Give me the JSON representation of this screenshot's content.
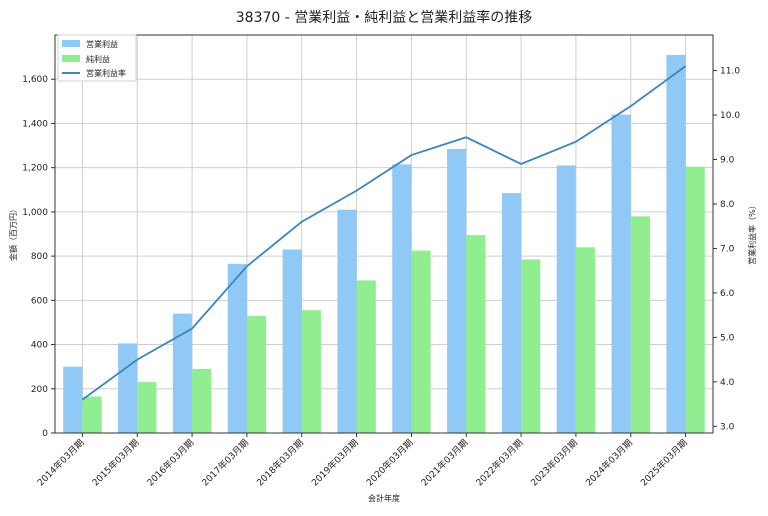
{
  "chart_data": {
    "type": "bar",
    "title": "38370 - 営業利益・純利益と営業利益率の推移",
    "xlabel": "会計年度",
    "ylabel": "金額（百万円）",
    "y2label": "営業利益率（%）",
    "categories": [
      "2014年03月期",
      "2015年03月期",
      "2016年03月期",
      "2017年03月期",
      "2018年03月期",
      "2019年03月期",
      "2020年03月期",
      "2021年03月期",
      "2022年03月期",
      "2023年03月期",
      "2024年03月期",
      "2025年03月期"
    ],
    "ylim": [
      0,
      1800
    ],
    "y_ticks": [
      0,
      200,
      400,
      600,
      800,
      1000,
      1200,
      1400,
      1600
    ],
    "y_tick_labels": [
      "0",
      "200",
      "400",
      "600",
      "800",
      "1,000",
      "1,200",
      "1,400",
      "1,600"
    ],
    "y2lim": [
      2.85,
      11.8
    ],
    "y2_ticks": [
      3.0,
      4.0,
      5.0,
      6.0,
      7.0,
      8.0,
      9.0,
      10.0,
      11.0
    ],
    "y2_tick_labels": [
      "3.0",
      "4.0",
      "5.0",
      "6.0",
      "7.0",
      "8.0",
      "9.0",
      "10.0",
      "11.0"
    ],
    "grid": true,
    "legend_position": "top-left",
    "series": [
      {
        "name": "営業利益",
        "kind": "bar",
        "axis": "left",
        "color": "#90c9f5",
        "values": [
          300,
          405,
          540,
          765,
          830,
          1010,
          1215,
          1285,
          1085,
          1210,
          1440,
          1710
        ]
      },
      {
        "name": "純利益",
        "kind": "bar",
        "axis": "left",
        "color": "#90ee90",
        "values": [
          165,
          230,
          290,
          530,
          555,
          690,
          825,
          895,
          785,
          840,
          980,
          1205
        ]
      },
      {
        "name": "営業利益率",
        "kind": "line",
        "axis": "right",
        "color": "#3a87bd",
        "values": [
          3.6,
          4.5,
          5.2,
          6.6,
          7.6,
          8.3,
          9.1,
          9.5,
          8.9,
          9.4,
          10.2,
          11.1
        ]
      }
    ]
  }
}
